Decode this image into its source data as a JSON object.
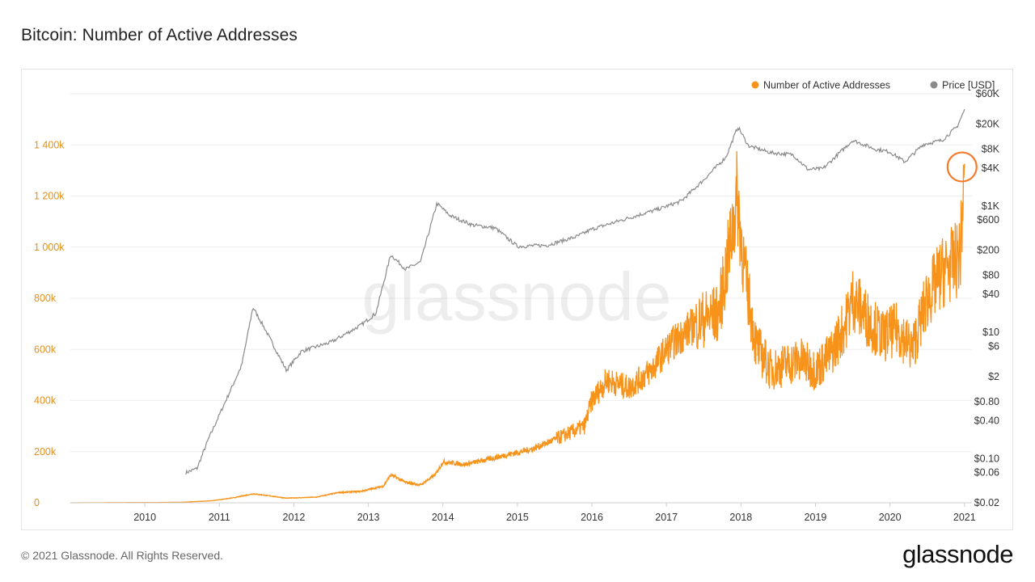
{
  "page": {
    "title": "Bitcoin: Number of Active Addresses",
    "copyright": "© 2021 Glassnode. All Rights Reserved.",
    "brand": "glassnode",
    "watermark": "glassnode"
  },
  "colors": {
    "addresses": "#f7931a",
    "price": "#8a8a8a",
    "left_axis_text": "#e3901c",
    "gridline": "#eeeeee",
    "highlight_circle": "#f47a2c"
  },
  "chart_data": {
    "type": "line",
    "title": "Bitcoin: Number of Active Addresses",
    "legend": {
      "placement": "top-right",
      "entries": [
        {
          "name": "Number of Active Addresses",
          "color": "#f7931a"
        },
        {
          "name": "Price [USD]",
          "color": "#8a8a8a"
        }
      ]
    },
    "x_axis": {
      "range": [
        2009.0,
        2021.1
      ],
      "ticks": [
        "2010",
        "2011",
        "2012",
        "2013",
        "2014",
        "2015",
        "2016",
        "2017",
        "2018",
        "2019",
        "2020",
        "2021"
      ]
    },
    "y_left": {
      "scale": "linear",
      "range": [
        0,
        1600000
      ],
      "ticks": [
        {
          "value": 0,
          "label": "0"
        },
        {
          "value": 200000,
          "label": "200k"
        },
        {
          "value": 400000,
          "label": "400k"
        },
        {
          "value": 600000,
          "label": "600k"
        },
        {
          "value": 800000,
          "label": "800k"
        },
        {
          "value": 1000000,
          "label": "1 000k"
        },
        {
          "value": 1200000,
          "label": "1 200k"
        },
        {
          "value": 1400000,
          "label": "1 400k"
        }
      ],
      "grid": true
    },
    "y_right": {
      "scale": "log",
      "range": [
        0.02,
        60000
      ],
      "ticks": [
        {
          "value": 60000,
          "label": "$60K"
        },
        {
          "value": 20000,
          "label": "$20K"
        },
        {
          "value": 8000,
          "label": "$8K"
        },
        {
          "value": 4000,
          "label": "$4K"
        },
        {
          "value": 1000,
          "label": "$1K"
        },
        {
          "value": 600,
          "label": "$600"
        },
        {
          "value": 200,
          "label": "$200"
        },
        {
          "value": 80,
          "label": "$80"
        },
        {
          "value": 40,
          "label": "$40"
        },
        {
          "value": 10,
          "label": "$10"
        },
        {
          "value": 6,
          "label": "$6"
        },
        {
          "value": 2,
          "label": "$2"
        },
        {
          "value": 0.8,
          "label": "$0.80"
        },
        {
          "value": 0.4,
          "label": "$0.40"
        },
        {
          "value": 0.1,
          "label": "$0.10"
        },
        {
          "value": 0.06,
          "label": "$0.06"
        },
        {
          "value": 0.02,
          "label": "$0.02"
        }
      ]
    },
    "series": [
      {
        "name": "Number of Active Addresses",
        "axis": "left",
        "points": [
          [
            2009.0,
            0
          ],
          [
            2010.0,
            1000
          ],
          [
            2010.5,
            2000
          ],
          [
            2010.9,
            8000
          ],
          [
            2011.2,
            20000
          ],
          [
            2011.45,
            35000
          ],
          [
            2011.6,
            30000
          ],
          [
            2011.9,
            18000
          ],
          [
            2012.3,
            22000
          ],
          [
            2012.6,
            40000
          ],
          [
            2012.9,
            45000
          ],
          [
            2013.2,
            65000
          ],
          [
            2013.3,
            110000
          ],
          [
            2013.5,
            80000
          ],
          [
            2013.7,
            70000
          ],
          [
            2013.9,
            110000
          ],
          [
            2014.0,
            160000
          ],
          [
            2014.3,
            150000
          ],
          [
            2014.6,
            170000
          ],
          [
            2014.9,
            190000
          ],
          [
            2015.2,
            210000
          ],
          [
            2015.6,
            260000
          ],
          [
            2015.9,
            300000
          ],
          [
            2016.0,
            400000
          ],
          [
            2016.2,
            480000
          ],
          [
            2016.5,
            450000
          ],
          [
            2016.8,
            520000
          ],
          [
            2017.0,
            600000
          ],
          [
            2017.3,
            680000
          ],
          [
            2017.5,
            720000
          ],
          [
            2017.7,
            740000
          ],
          [
            2017.85,
            1000000
          ],
          [
            2017.95,
            1200000
          ],
          [
            2018.05,
            900000
          ],
          [
            2018.2,
            620000
          ],
          [
            2018.4,
            520000
          ],
          [
            2018.6,
            540000
          ],
          [
            2018.8,
            560000
          ],
          [
            2019.0,
            520000
          ],
          [
            2019.2,
            580000
          ],
          [
            2019.4,
            700000
          ],
          [
            2019.5,
            800000
          ],
          [
            2019.7,
            720000
          ],
          [
            2019.9,
            650000
          ],
          [
            2020.1,
            680000
          ],
          [
            2020.3,
            600000
          ],
          [
            2020.5,
            800000
          ],
          [
            2020.7,
            900000
          ],
          [
            2020.9,
            950000
          ],
          [
            2020.95,
            1000000
          ],
          [
            2021.0,
            1320000
          ]
        ]
      },
      {
        "name": "Price [USD]",
        "axis": "right",
        "points": [
          [
            2010.55,
            0.06
          ],
          [
            2010.7,
            0.07
          ],
          [
            2010.85,
            0.2
          ],
          [
            2011.1,
            0.9
          ],
          [
            2011.3,
            3
          ],
          [
            2011.45,
            25
          ],
          [
            2011.6,
            12
          ],
          [
            2011.9,
            2.5
          ],
          [
            2012.1,
            5
          ],
          [
            2012.5,
            7
          ],
          [
            2012.9,
            13
          ],
          [
            2013.1,
            20
          ],
          [
            2013.3,
            170
          ],
          [
            2013.5,
            100
          ],
          [
            2013.7,
            130
          ],
          [
            2013.92,
            1100
          ],
          [
            2014.1,
            700
          ],
          [
            2014.4,
            500
          ],
          [
            2014.7,
            450
          ],
          [
            2015.0,
            230
          ],
          [
            2015.4,
            240
          ],
          [
            2015.8,
            330
          ],
          [
            2016.0,
            430
          ],
          [
            2016.5,
            650
          ],
          [
            2016.9,
            900
          ],
          [
            2017.2,
            1200
          ],
          [
            2017.5,
            2600
          ],
          [
            2017.8,
            6000
          ],
          [
            2017.96,
            18000
          ],
          [
            2018.1,
            9000
          ],
          [
            2018.4,
            7000
          ],
          [
            2018.7,
            6500
          ],
          [
            2018.9,
            3800
          ],
          [
            2019.1,
            3900
          ],
          [
            2019.5,
            11000
          ],
          [
            2019.8,
            8000
          ],
          [
            2020.0,
            7200
          ],
          [
            2020.2,
            5000
          ],
          [
            2020.45,
            9500
          ],
          [
            2020.7,
            11000
          ],
          [
            2020.9,
            18000
          ],
          [
            2021.0,
            33000
          ]
        ]
      }
    ],
    "annotation": {
      "type": "circle",
      "x": 2021.0,
      "series": "Number of Active Addresses",
      "value": 1320000
    }
  }
}
